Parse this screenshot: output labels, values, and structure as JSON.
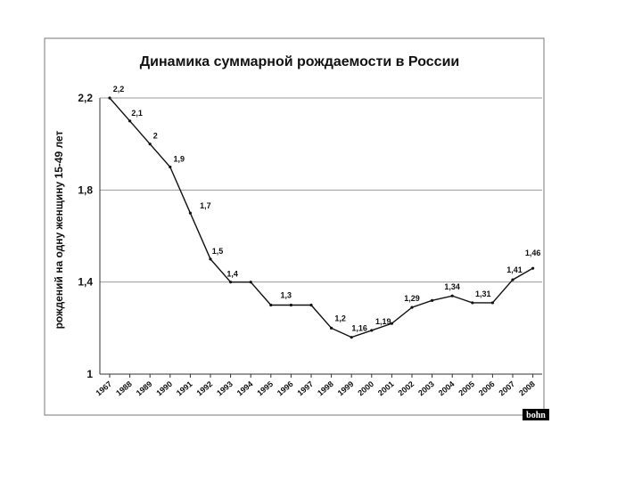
{
  "chart_data": {
    "type": "line",
    "title": "Динамика суммарной рождаемости в России",
    "xlabel": "",
    "ylabel": "рождений на одну женщину 15-49 лет",
    "ylim": [
      1,
      2.2
    ],
    "yticks": [
      {
        "value": 1,
        "label": "1"
      },
      {
        "value": 1.4,
        "label": "1,4"
      },
      {
        "value": 1.8,
        "label": "1,8"
      },
      {
        "value": 2.2,
        "label": "2,2"
      }
    ],
    "grid": true,
    "categories": [
      "1967",
      "1988",
      "1989",
      "1990",
      "1991",
      "1992",
      "1993",
      "1994",
      "1995",
      "1996",
      "1997",
      "1998",
      "1999",
      "2000",
      "2001",
      "2002",
      "2003",
      "2004",
      "2005",
      "2006",
      "2007",
      "2008"
    ],
    "series": [
      {
        "values": [
          2.2,
          2.1,
          2.0,
          1.9,
          1.7,
          1.5,
          1.4,
          1.4,
          1.3,
          1.3,
          1.3,
          1.2,
          1.16,
          1.19,
          1.22,
          1.29,
          1.32,
          1.34,
          1.31,
          1.31,
          1.41,
          1.46
        ],
        "labels": [
          "2,2",
          "2,1",
          "2",
          "1,9",
          "1,7",
          "1,5",
          "1,4",
          "",
          "1,3",
          "",
          "",
          "1,2",
          "1,16",
          "1,19",
          "",
          "1,29",
          "",
          "1,34",
          "1,31",
          "",
          "1,41",
          "1,46"
        ]
      }
    ],
    "watermark": "bohn"
  }
}
